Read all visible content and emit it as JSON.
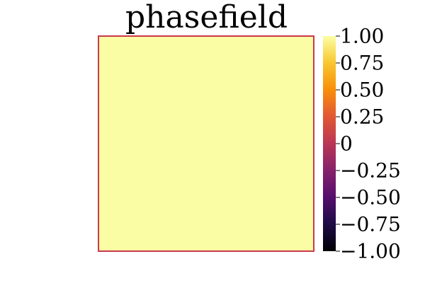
{
  "chart_data": {
    "type": "heatmap",
    "title": "phasefield",
    "xlabel": "",
    "ylabel": "",
    "values": [
      [
        1.0
      ]
    ],
    "colorbar": {
      "range": [
        -1.0,
        1.0
      ],
      "ticks": [
        1.0,
        0.75,
        0.5,
        0.25,
        0,
        -0.25,
        -0.5,
        -0.75,
        -1.0
      ],
      "tick_labels": [
        "1.00",
        "0.75",
        "0.50",
        "0.25",
        "0",
        "−0.25",
        "−0.50",
        "−0.75",
        "−1.00"
      ],
      "colormap": "inferno"
    },
    "field_color": "#fbfda4",
    "frame_color": "#c9394f",
    "grid": false,
    "legend": "none"
  }
}
